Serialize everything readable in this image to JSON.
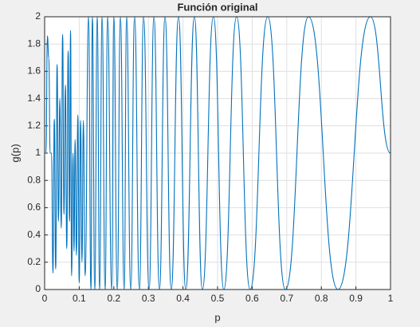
{
  "chart_data": {
    "type": "line",
    "title": "Función original",
    "xlabel": "p",
    "ylabel": "g(p)",
    "xlim": [
      0,
      1
    ],
    "ylim": [
      0,
      2
    ],
    "xticks": [
      0,
      0.1,
      0.2,
      0.3,
      0.4,
      0.5,
      0.6,
      0.7,
      0.8,
      0.9,
      1
    ],
    "yticks": [
      0,
      0.2,
      0.4,
      0.6,
      0.8,
      1,
      1.2,
      1.4,
      1.6,
      1.8,
      2
    ],
    "grid": true,
    "x": [
      0,
      0.004,
      0.008,
      0.012,
      0.016,
      0.02,
      0.024,
      0.028,
      0.032,
      0.036,
      0.04,
      0.044,
      0.048,
      0.052,
      0.056,
      0.06,
      0.064,
      0.068,
      0.072,
      0.075,
      0.078,
      0.082,
      0.085,
      0.088,
      0.092,
      0.096,
      0.1,
      0.104,
      0.108,
      0.112,
      0.117,
      0.127,
      0.134,
      0.138,
      0.145,
      0.152,
      0.159,
      0.166,
      0.175,
      0.182,
      0.194,
      0.2,
      0.21,
      0.219,
      0.23,
      0.237,
      0.249,
      0.26,
      0.274,
      0.286,
      0.302,
      0.316,
      0.332,
      0.348,
      0.366,
      0.387,
      0.408,
      0.433,
      0.456,
      0.488,
      0.518,
      0.555,
      0.594,
      0.645,
      0.696,
      0.763,
      0.848,
      0.942,
      1
    ],
    "series": [
      {
        "name": "g(p)",
        "color": "#0072bd",
        "values": [
          1,
          1,
          1.86,
          1.7,
          1,
          1,
          0.12,
          1.25,
          0.15,
          1.65,
          0.5,
          1.4,
          0.45,
          1.87,
          0.55,
          1.5,
          0.3,
          1.75,
          0.5,
          1.9,
          0.1,
          1.0,
          0.28,
          1.1,
          0.25,
          1.28,
          0.05,
          1.24,
          0.2,
          1.24,
          0.1,
          2,
          0,
          2,
          0,
          2,
          0,
          2,
          0,
          2,
          0,
          2,
          0,
          2,
          0,
          2,
          0,
          2,
          0,
          2,
          0,
          2,
          0,
          2,
          0,
          2,
          0,
          2,
          0,
          2,
          0,
          2,
          0,
          2,
          0,
          2,
          0,
          2,
          1
        ]
      }
    ]
  }
}
